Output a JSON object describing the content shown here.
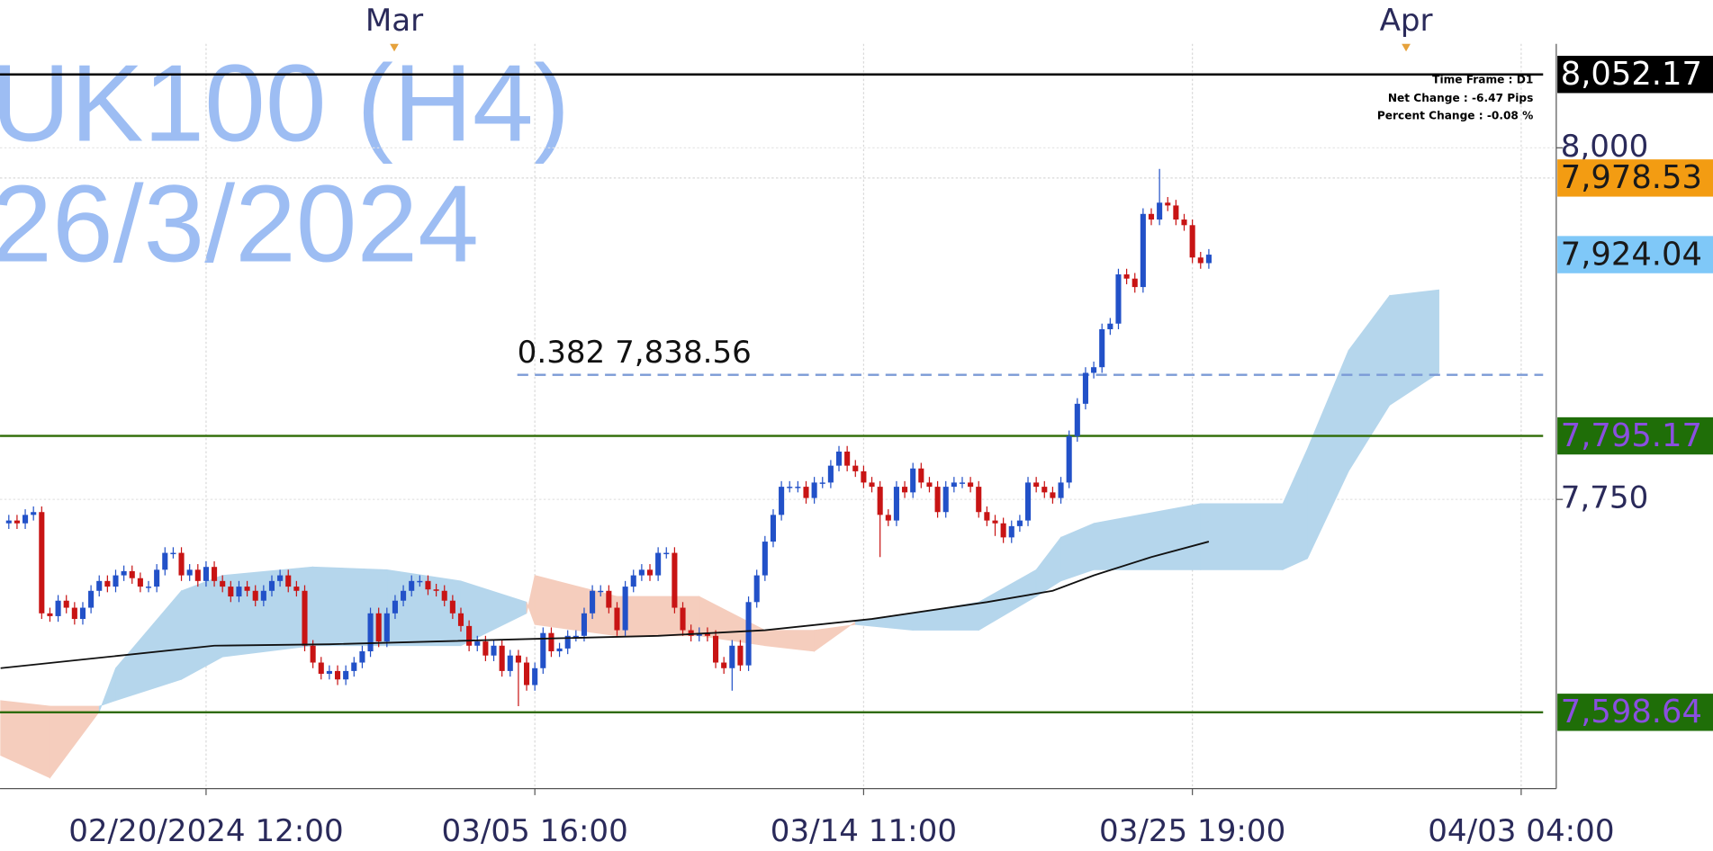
{
  "chart_data": {
    "type": "candlestick",
    "watermark": [
      "UK100 (H4)",
      "26/3/2024"
    ],
    "info": [
      "Time Frame : D1",
      "Net Change : -6.47 Pips",
      "Percent Change : -0.08 %"
    ],
    "xlim": [
      -1.07,
      188.27
    ],
    "ylim": [
      7544.4,
      8105.1
    ],
    "grid": true,
    "yticks": [
      {
        "value": 8000,
        "label": "8,000"
      },
      {
        "value": 7750,
        "label": "7,750"
      }
    ],
    "xticks": [
      {
        "value": 24,
        "label": "02/20/2024 12:00"
      },
      {
        "value": 64,
        "label": "03/05 16:00"
      },
      {
        "value": 104,
        "label": "03/14 11:00"
      },
      {
        "value": 144,
        "label": "03/25 19:00"
      },
      {
        "value": 184,
        "label": "04/03 04:00"
      }
    ],
    "top_ticks": [
      {
        "value": 46.9,
        "label": "Mar"
      },
      {
        "value": 170,
        "label": "Apr"
      }
    ],
    "up_color": "#2251c8",
    "down_color": "#c81414",
    "open": [
      7733,
      7735,
      7733,
      7739,
      7741,
      7669,
      7667,
      7678,
      7673,
      7665,
      7673,
      7685,
      7692,
      7688,
      7696,
      7699,
      7694,
      7688,
      7688,
      7700,
      7712,
      7712,
      7696,
      7700,
      7692,
      7702,
      7692,
      7688,
      7681,
      7688,
      7685,
      7678,
      7685,
      7692,
      7696,
      7688,
      7685,
      7646,
      7634,
      7626,
      7628,
      7622,
      7628,
      7634,
      7642,
      7669,
      7649,
      7669,
      7678,
      7685,
      7692,
      7692,
      7686,
      7685,
      7678,
      7669,
      7660,
      7646,
      7649,
      7639,
      7646,
      7628,
      7639,
      7634,
      7618,
      7630,
      7655,
      7642,
      7644,
      7653,
      7653,
      7669,
      7685,
      7685,
      7673,
      7657,
      7688,
      7696,
      7700,
      7696,
      7712,
      7712,
      7673,
      7657,
      7653,
      7655,
      7653,
      7634,
      7630,
      7646,
      7632,
      7677,
      7696,
      7720,
      7739,
      7759,
      7759,
      7759,
      7751,
      7762,
      7762,
      7774,
      7784,
      7774,
      7770,
      7762,
      7759,
      7739,
      7735,
      7759,
      7755,
      7772,
      7762,
      7759,
      7741,
      7759,
      7762,
      7762,
      7759,
      7741,
      7735,
      7733,
      7723,
      7731,
      7735,
      7762,
      7759,
      7755,
      7751,
      7762,
      7795,
      7818,
      7840,
      7844,
      7871,
      7875,
      7910,
      7907,
      7901,
      7953,
      7949,
      7961,
      7959,
      7949,
      7945,
      7922,
      7918
    ],
    "high": [
      7739,
      7739,
      7743,
      7745,
      7745,
      7673,
      7682,
      7682,
      7677,
      7677,
      7689,
      7696,
      7696,
      7700,
      7703,
      7703,
      7698,
      7692,
      7704,
      7716,
      7716,
      7716,
      7704,
      7704,
      7706,
      7706,
      7696,
      7692,
      7692,
      7692,
      7689,
      7689,
      7696,
      7700,
      7700,
      7692,
      7689,
      7650,
      7638,
      7632,
      7632,
      7632,
      7638,
      7646,
      7673,
      7673,
      7673,
      7682,
      7689,
      7696,
      7696,
      7696,
      7690,
      7689,
      7682,
      7673,
      7664,
      7653,
      7653,
      7650,
      7650,
      7643,
      7643,
      7638,
      7634,
      7659,
      7659,
      7648,
      7657,
      7657,
      7673,
      7689,
      7689,
      7689,
      7677,
      7692,
      7700,
      7704,
      7704,
      7716,
      7716,
      7716,
      7677,
      7661,
      7659,
      7659,
      7657,
      7638,
      7650,
      7650,
      7681,
      7700,
      7724,
      7743,
      7763,
      7763,
      7763,
      7763,
      7766,
      7766,
      7778,
      7788,
      7788,
      7778,
      7774,
      7766,
      7763,
      7743,
      7763,
      7763,
      7776,
      7776,
      7766,
      7763,
      7763,
      7766,
      7766,
      7766,
      7763,
      7745,
      7739,
      7737,
      7735,
      7739,
      7766,
      7766,
      7763,
      7759,
      7766,
      7799,
      7822,
      7844,
      7848,
      7875,
      7879,
      7914,
      7914,
      7911,
      7957,
      7957,
      7985,
      7965,
      7963,
      7953,
      7949,
      7926,
      7928
    ],
    "low": [
      7729,
      7729,
      7729,
      7735,
      7665,
      7663,
      7663,
      7669,
      7661,
      7661,
      7669,
      7681,
      7684,
      7684,
      7692,
      7690,
      7684,
      7684,
      7684,
      7696,
      7708,
      7692,
      7692,
      7688,
      7688,
      7688,
      7684,
      7677,
      7677,
      7681,
      7674,
      7674,
      7681,
      7688,
      7684,
      7681,
      7642,
      7630,
      7622,
      7622,
      7618,
      7618,
      7624,
      7630,
      7638,
      7645,
      7645,
      7665,
      7674,
      7681,
      7688,
      7682,
      7681,
      7674,
      7665,
      7656,
      7642,
      7642,
      7635,
      7635,
      7624,
      7624,
      7603,
      7614,
      7614,
      7626,
      7638,
      7638,
      7640,
      7649,
      7649,
      7665,
      7681,
      7669,
      7653,
      7653,
      7684,
      7692,
      7692,
      7692,
      7708,
      7669,
      7653,
      7649,
      7649,
      7649,
      7630,
      7626,
      7614,
      7628,
      7628,
      7673,
      7692,
      7716,
      7735,
      7755,
      7755,
      7747,
      7747,
      7758,
      7758,
      7770,
      7770,
      7766,
      7758,
      7755,
      7709,
      7731,
      7731,
      7751,
      7751,
      7758,
      7755,
      7737,
      7737,
      7755,
      7758,
      7755,
      7737,
      7731,
      7724,
      7719,
      7719,
      7727,
      7731,
      7755,
      7751,
      7747,
      7747,
      7758,
      7791,
      7814,
      7836,
      7840,
      7867,
      7871,
      7903,
      7897,
      7897,
      7945,
      7945,
      7955,
      7945,
      7941,
      7918,
      7914,
      7914
    ],
    "close": [
      7735,
      7733,
      7739,
      7741,
      7669,
      7667,
      7678,
      7673,
      7665,
      7673,
      7685,
      7692,
      7688,
      7696,
      7699,
      7694,
      7688,
      7688,
      7700,
      7712,
      7712,
      7696,
      7700,
      7692,
      7702,
      7692,
      7688,
      7681,
      7688,
      7685,
      7678,
      7685,
      7692,
      7696,
      7688,
      7685,
      7646,
      7634,
      7626,
      7628,
      7622,
      7628,
      7634,
      7642,
      7669,
      7649,
      7669,
      7678,
      7685,
      7692,
      7692,
      7686,
      7685,
      7678,
      7669,
      7660,
      7646,
      7649,
      7639,
      7646,
      7628,
      7639,
      7634,
      7618,
      7630,
      7655,
      7642,
      7644,
      7653,
      7653,
      7669,
      7685,
      7685,
      7673,
      7657,
      7688,
      7696,
      7700,
      7696,
      7712,
      7712,
      7673,
      7657,
      7653,
      7655,
      7653,
      7634,
      7630,
      7646,
      7632,
      7677,
      7696,
      7720,
      7739,
      7759,
      7759,
      7759,
      7751,
      7762,
      7762,
      7774,
      7784,
      7774,
      7770,
      7762,
      7759,
      7739,
      7735,
      7759,
      7755,
      7772,
      7762,
      7759,
      7741,
      7759,
      7762,
      7762,
      7759,
      7741,
      7735,
      7733,
      7723,
      7731,
      7735,
      7762,
      7759,
      7755,
      7751,
      7762,
      7795,
      7818,
      7840,
      7844,
      7871,
      7875,
      7910,
      7907,
      7901,
      7953,
      7949,
      7961,
      7959,
      7949,
      7945,
      7922,
      7918,
      7924.04
    ],
    "moving_average": {
      "color": "#111111",
      "x": [
        -1,
        12,
        25,
        39,
        52,
        65,
        79,
        92,
        105,
        119,
        127,
        132,
        139,
        146
      ],
      "values": [
        7630,
        7638,
        7646,
        7647,
        7649,
        7651,
        7653,
        7657,
        7665,
        7677,
        7685,
        7696,
        7709,
        7720
      ]
    },
    "cloud": {
      "up_color": "#b5d6ec",
      "down_color": "#f5cdbd",
      "x": [
        -1,
        5,
        11,
        13,
        21,
        26,
        37,
        46,
        55,
        63,
        64,
        74,
        84,
        92,
        98,
        103,
        110,
        118,
        125,
        128,
        132,
        145,
        155,
        158,
        163,
        168,
        174
      ],
      "span_a": [
        7568,
        7552,
        7599,
        7630,
        7685,
        7696,
        7702,
        7700,
        7692,
        7677,
        7661,
        7653,
        7653,
        7646,
        7642,
        7663,
        7669,
        7677,
        7700,
        7723,
        7733,
        7747,
        7747,
        7786,
        7856,
        7895,
        7899
      ],
      "span_b": [
        7607,
        7603,
        7603,
        7607,
        7622,
        7638,
        7646,
        7646,
        7646,
        7669,
        7696,
        7681,
        7681,
        7657,
        7657,
        7661,
        7657,
        7657,
        7681,
        7692,
        7700,
        7700,
        7700,
        7708,
        7770,
        7817,
        7840
      ]
    },
    "fib": {
      "label": "0.382 7,838.56",
      "value": 7838.56,
      "color": "#7b9bd6"
    },
    "levels": [
      {
        "value": 8052.17,
        "label": "8,052.17",
        "line": "solid",
        "line_color": "#000000",
        "box_color": "#000000",
        "text_color": "#ffffff"
      },
      {
        "value": 7978.53,
        "label": "7,978.53",
        "line": "dotted",
        "line_color": "#d8d8d8",
        "box_color": "#f39c12",
        "text_color": "#1a1a1a"
      },
      {
        "value": 7924.04,
        "label": "7,924.04",
        "line": "none",
        "line_color": "#7fc8f8",
        "box_color": "#7fc8f8",
        "text_color": "#1a1a1a"
      },
      {
        "value": 7795.17,
        "label": "7,795.17",
        "line": "solid",
        "line_color": "#2e6b05",
        "box_color": "#1f6e08",
        "text_color": "#8a4fe0"
      },
      {
        "value": 7598.64,
        "label": "7,598.64",
        "line": "solid",
        "line_color": "#2e6b05",
        "box_color": "#1f6e08",
        "text_color": "#8a4fe0"
      }
    ]
  }
}
